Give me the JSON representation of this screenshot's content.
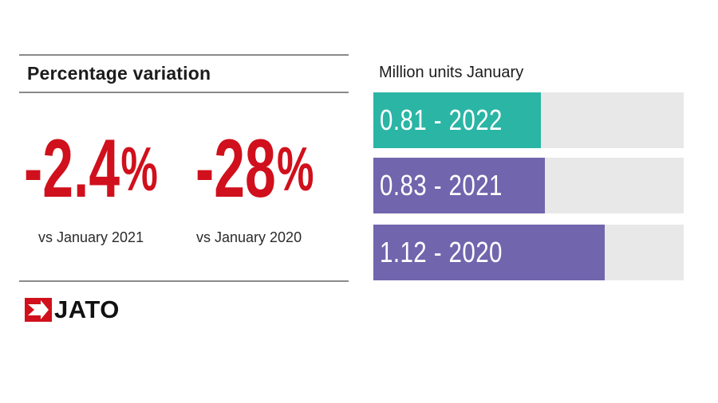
{
  "colors": {
    "accent_red": "#d0101c",
    "teal": "#2ab5a5",
    "purple": "#7165ad",
    "track": "#e8e8e8"
  },
  "left_panel": {
    "title": "Percentage variation",
    "stats": [
      {
        "value": "-2.4",
        "unit": "%",
        "caption": "vs January 2021"
      },
      {
        "value": "-28",
        "unit": "%",
        "caption": "vs January 2020"
      }
    ]
  },
  "logo": {
    "text": "JATO"
  },
  "chart_data": {
    "type": "bar",
    "orientation": "horizontal",
    "title": "Million units January",
    "categories": [
      "2022",
      "2021",
      "2020"
    ],
    "values": [
      0.81,
      0.83,
      1.12
    ],
    "labels": [
      "0.81 - 2022",
      "0.83 - 2021",
      "1.12 - 2020"
    ],
    "bar_colors": [
      "#2ab5a5",
      "#7165ad",
      "#7165ad"
    ],
    "xlim": [
      0,
      1.5
    ],
    "xlabel": "",
    "ylabel": "",
    "grid": false
  }
}
